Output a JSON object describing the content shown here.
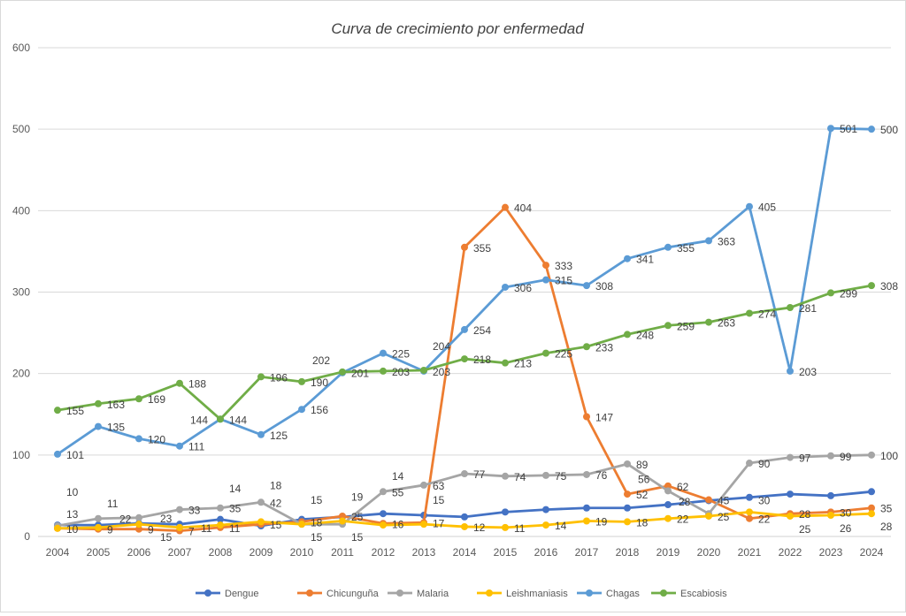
{
  "chart_data": {
    "type": "line",
    "title": "Curva de crecimiento por enfermedad",
    "xlabel": "",
    "ylabel": "",
    "ylim": [
      0,
      600
    ],
    "yticks": [
      0,
      100,
      200,
      300,
      400,
      500,
      600
    ],
    "grid": true,
    "legend": "bottom",
    "x": [
      2004,
      2005,
      2006,
      2007,
      2008,
      2009,
      2010,
      2011,
      2012,
      2013,
      2014,
      2015,
      2016,
      2017,
      2018,
      2019,
      2020,
      2021,
      2022,
      2023,
      2024
    ],
    "series": [
      {
        "name": "Dengue",
        "color": "#4472c4",
        "labels": false,
        "values": [
          14,
          14,
          16,
          15,
          21,
          13,
          21,
          24,
          28,
          26,
          24,
          30,
          33,
          35,
          35,
          39,
          44,
          48,
          52,
          50,
          55
        ]
      },
      {
        "name": "Chicunguña",
        "color": "#ed7d31",
        "labels": true,
        "values": [
          10,
          9,
          9,
          7,
          11,
          15,
          18,
          25,
          16,
          17,
          355,
          404,
          333,
          147,
          52,
          62,
          45,
          22,
          28,
          30,
          35
        ]
      },
      {
        "name": "Malaria",
        "color": "#a5a5a5",
        "labels": true,
        "values": [
          13,
          22,
          23,
          33,
          35,
          42,
          15,
          15,
          55,
          63,
          77,
          74,
          75,
          76,
          89,
          56,
          28,
          90,
          97,
          99,
          100
        ]
      },
      {
        "name": "Leishmaniasis",
        "color": "#ffc000",
        "labels": true,
        "values": [
          10,
          11,
          15,
          11,
          14,
          18,
          15,
          19,
          14,
          15,
          12,
          11,
          14,
          19,
          18,
          22,
          25,
          30,
          25,
          26,
          28
        ]
      },
      {
        "name": "Chagas",
        "color": "#5b9bd5",
        "labels": true,
        "values": [
          101,
          135,
          120,
          111,
          144,
          125,
          156,
          201,
          225,
          203,
          254,
          306,
          315,
          308,
          341,
          355,
          363,
          405,
          203,
          501,
          500
        ]
      },
      {
        "name": "Escabiosis",
        "color": "#70ad47",
        "labels": true,
        "values": [
          155,
          163,
          169,
          188,
          144,
          196,
          190,
          202,
          203,
          204,
          218,
          213,
          225,
          233,
          248,
          259,
          263,
          274,
          281,
          299,
          308
        ]
      }
    ]
  }
}
